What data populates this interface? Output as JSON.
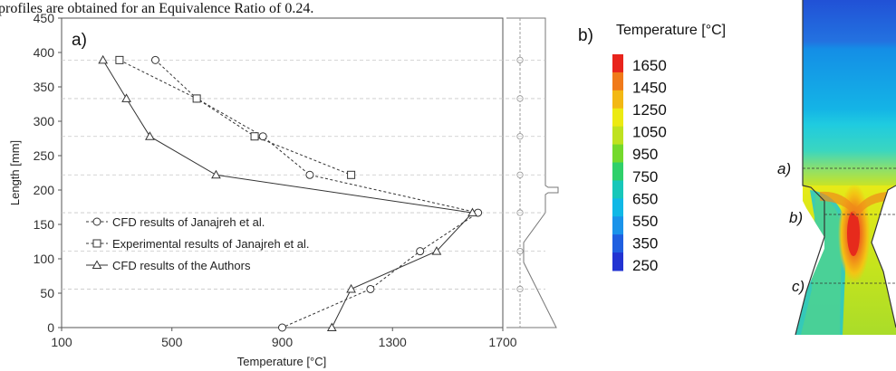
{
  "caption_fragment": "profiles are obtained for an Equivalence Ratio of 0.24.",
  "chart_data": {
    "type": "line",
    "panel_label": "a)",
    "xlabel": "Temperature [°C]",
    "ylabel": "Length [mm]",
    "xlim": [
      100,
      1700
    ],
    "ylim": [
      0,
      450
    ],
    "xticks": [
      "100",
      "500",
      "900",
      "1300",
      "1700"
    ],
    "yticks": [
      "0",
      "50",
      "100",
      "150",
      "200",
      "250",
      "300",
      "350",
      "400",
      "450"
    ],
    "section_levels": [
      0,
      56,
      111,
      167,
      222,
      278,
      333,
      389
    ],
    "series": [
      {
        "name": "CFD results of Janajreh et al.",
        "marker": "circle",
        "dash": "dashed",
        "points": [
          [
            440,
            389
          ],
          [
            590,
            333
          ],
          [
            830,
            278
          ],
          [
            1000,
            222
          ],
          [
            1610,
            167
          ],
          [
            1400,
            111
          ],
          [
            1220,
            56
          ],
          [
            900,
            0
          ]
        ]
      },
      {
        "name": "Experimental results of Janajreh et al.",
        "marker": "square",
        "dash": "dashed",
        "points": [
          [
            310,
            389
          ],
          [
            590,
            333
          ],
          [
            800,
            278
          ],
          [
            1150,
            222
          ]
        ]
      },
      {
        "name": "CFD results of the Authors",
        "marker": "triangle",
        "dash": "solid",
        "points": [
          [
            250,
            389
          ],
          [
            335,
            333
          ],
          [
            420,
            278
          ],
          [
            660,
            222
          ],
          [
            1590,
            167
          ],
          [
            1460,
            111
          ],
          [
            1150,
            56
          ],
          [
            1080,
            0
          ]
        ]
      }
    ],
    "colorbar": {
      "panel_label": "b)",
      "title": "Temperature [°C]",
      "ticks": [
        "1650",
        "1450",
        "1250",
        "1050",
        "950",
        "750",
        "650",
        "550",
        "350",
        "250"
      ],
      "colors": [
        "#e8241c",
        "#f07a1a",
        "#f3b814",
        "#ecea12",
        "#bfe21f",
        "#74d92c",
        "#2fd06a",
        "#17c7b9",
        "#10b8e6",
        "#1a93ea",
        "#1f5fe0",
        "#2233d2"
      ]
    },
    "contour_section_labels": [
      "a)",
      "b)",
      "c)"
    ]
  }
}
